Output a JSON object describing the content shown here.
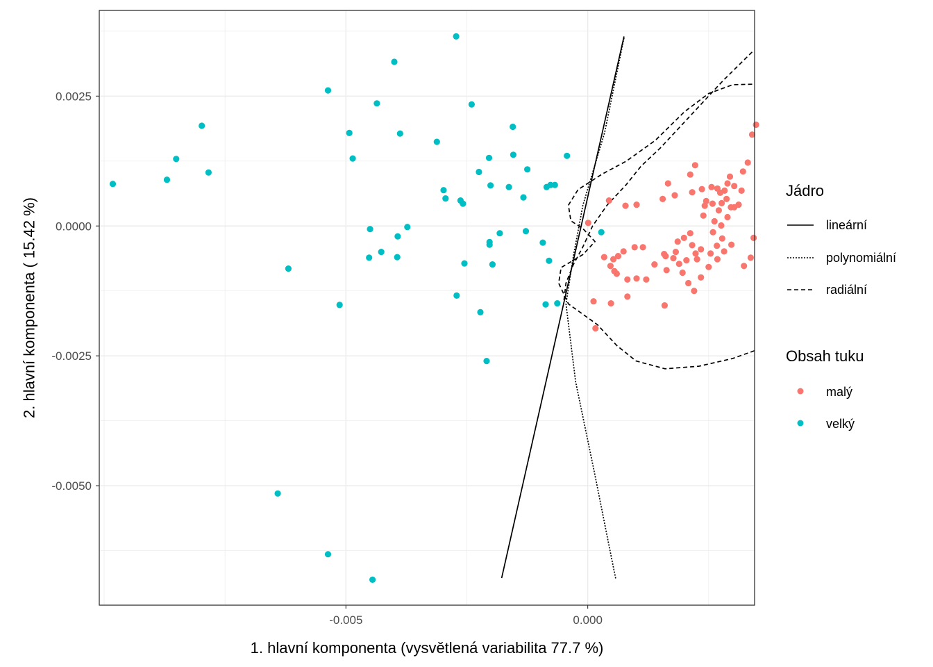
{
  "chart_data": {
    "type": "scatter",
    "xlabel": "1. hlavní komponenta (vysvětlená variabilita 77.7 %)",
    "ylabel": "2. hlavní komponenta ( 15.42 %)",
    "xlim": [
      -0.0101,
      0.00345
    ],
    "ylim": [
      -0.0073,
      0.00415
    ],
    "x_ticks": [
      -0.005,
      0.0
    ],
    "x_tick_labels": [
      "-0.005",
      "0.000"
    ],
    "y_ticks": [
      0.0025,
      0.0,
      -0.0025,
      -0.005
    ],
    "y_tick_labels": [
      "0.0025",
      "0.0000",
      "-0.0025",
      "-0.0050"
    ],
    "grid": true,
    "legend_position": "right",
    "legends": {
      "kernel": {
        "title": "Jádro",
        "entries": [
          {
            "label": "lineární",
            "dash": "solid"
          },
          {
            "label": "polynomiální",
            "dash": "dotted"
          },
          {
            "label": "radiální",
            "dash": "dashed"
          }
        ]
      },
      "fat": {
        "title": "Obsah tuku",
        "entries": [
          {
            "label": "malý",
            "color": "#F8766D"
          },
          {
            "label": "velký",
            "color": "#00BFC4"
          }
        ]
      }
    },
    "series": [
      {
        "name": "malý",
        "color": "#F8766D",
        "points": [
          [
            0.00078,
            0.00039
          ],
          [
            0.00044,
            0.00049
          ],
          [
            0.00101,
            0.00041
          ],
          [
            0.00289,
            0.00082
          ],
          [
            0.00348,
            0.00195
          ],
          [
            0.0034,
            0.00176
          ],
          [
            0.00222,
            0.00117
          ],
          [
            0.00212,
            0.00099
          ],
          [
            0.00236,
            0.00071
          ],
          [
            0.00256,
            0.00075
          ],
          [
            0.00268,
            0.00072
          ],
          [
            0.00274,
            0.00064
          ],
          [
            0.00283,
            0.00068
          ],
          [
            0.00294,
            0.00095
          ],
          [
            0.00303,
            0.00077
          ],
          [
            0.00318,
            0.00068
          ],
          [
            0.00331,
            0.00122
          ],
          [
            0.00321,
            0.00105
          ],
          [
            0.00245,
            0.00048
          ],
          [
            0.00258,
            0.00043
          ],
          [
            0.00277,
            0.00044
          ],
          [
            0.00287,
            0.00052
          ],
          [
            0.00303,
            0.00036
          ],
          [
            0.00312,
            0.00041
          ],
          [
            0.00271,
            0.0003
          ],
          [
            0.00296,
            0.00036
          ],
          [
            0.00242,
            0.00039
          ],
          [
            0.00216,
            0.00065
          ],
          [
            0.00166,
            0.00082
          ],
          [
            0.0018,
            0.00059
          ],
          [
            0.00155,
            0.00052
          ],
          [
            0.00239,
            0.0002
          ],
          [
            0.00262,
            9e-05
          ],
          [
            0.00289,
            0.00017
          ],
          [
            0.00276,
            1e-05
          ],
          [
            0.00259,
            -0.00012
          ],
          [
            0.00278,
            -0.00024
          ],
          [
            0.00297,
            -0.00036
          ],
          [
            0.00267,
            -0.00038
          ],
          [
            0.00254,
            -0.00053
          ],
          [
            0.00212,
            -0.00014
          ],
          [
            0.00199,
            -0.00023
          ],
          [
            0.00186,
            -0.0003
          ],
          [
            0.00216,
            -0.00037
          ],
          [
            0.00234,
            -0.00045
          ],
          [
            0.00226,
            -0.00064
          ],
          [
            0.00204,
            -0.00066
          ],
          [
            0.00189,
            -0.00073
          ],
          [
            0.00161,
            -0.00058
          ],
          [
            0.00138,
            -0.00074
          ],
          [
            0.00114,
            -0.00041
          ],
          [
            0.00097,
            -0.00041
          ],
          [
            0.00074,
            -0.00049
          ],
          [
            0.00063,
            -0.00058
          ],
          [
            0.00053,
            -0.00064
          ],
          [
            0.00047,
            -0.00077
          ],
          [
            0.0006,
            -0.00092
          ],
          [
            0.00082,
            -0.00103
          ],
          [
            0.00101,
            -0.00101
          ],
          [
            0.00121,
            -0.00103
          ],
          [
            0.00163,
            -0.00085
          ],
          [
            0.00177,
            -0.00062
          ],
          [
            0.00196,
            -0.0009
          ],
          [
            0.00208,
            -0.0011
          ],
          [
            0.0022,
            -0.00125
          ],
          [
            0.00234,
            -0.00099
          ],
          [
            0.0025,
            -0.00079
          ],
          [
            0.00268,
            -0.00064
          ],
          [
            0.00282,
            -0.00049
          ],
          [
            0.00337,
            -0.00061
          ],
          [
            0.00343,
            -0.00023
          ],
          [
            0.00323,
            -0.00077
          ],
          [
            0.00082,
            -0.00136
          ],
          [
            0.00048,
            -0.00149
          ],
          [
            0.00159,
            -0.00153
          ],
          [
            0.00012,
            -0.00145
          ],
          [
            0.00016,
            -0.00197
          ],
          [
            0.00055,
            -0.00087
          ],
          [
            0.00034,
            -0.0006
          ],
          [
            1e-05,
            6e-05
          ],
          [
            0.00223,
            -0.00053
          ],
          [
            0.00158,
            -0.00054
          ],
          [
            0.00182,
            -0.0005
          ]
        ]
      },
      {
        "name": "velký",
        "color": "#00BFC4",
        "points": [
          [
            -0.00982,
            0.00081
          ],
          [
            -0.0087,
            0.00089
          ],
          [
            -0.00851,
            0.00129
          ],
          [
            -0.00798,
            0.00193
          ],
          [
            -0.00784,
            0.00103
          ],
          [
            -0.00619,
            -0.00082
          ],
          [
            -0.00641,
            -0.00515
          ],
          [
            -0.00537,
            -0.00632
          ],
          [
            -0.00537,
            0.00261
          ],
          [
            -0.00513,
            -0.00152
          ],
          [
            -0.00493,
            0.00179
          ],
          [
            -0.00486,
            0.0013
          ],
          [
            -0.00436,
            0.00236
          ],
          [
            -0.0045,
            -6e-05
          ],
          [
            -0.00452,
            -0.00061
          ],
          [
            -0.00427,
            -0.0005
          ],
          [
            -0.00445,
            -0.00681
          ],
          [
            -0.004,
            0.00316
          ],
          [
            -0.00388,
            0.00178
          ],
          [
            -0.00393,
            -0.0002
          ],
          [
            -0.00373,
            -2e-05
          ],
          [
            -0.00394,
            -0.0006
          ],
          [
            -0.00312,
            0.00162
          ],
          [
            -0.00298,
            0.00069
          ],
          [
            -0.00294,
            0.00053
          ],
          [
            -0.00272,
            0.00365
          ],
          [
            -0.00271,
            -0.00134
          ],
          [
            -0.00263,
            0.00049
          ],
          [
            -0.00258,
            0.00043
          ],
          [
            -0.00255,
            -0.00072
          ],
          [
            -0.0024,
            0.00234
          ],
          [
            -0.00225,
            0.00104
          ],
          [
            -0.00222,
            -0.00166
          ],
          [
            -0.00209,
            -0.0026
          ],
          [
            -0.00204,
            0.00131
          ],
          [
            -0.00201,
            0.00078
          ],
          [
            -0.00203,
            -0.00036
          ],
          [
            -0.00203,
            -0.00031
          ],
          [
            -0.00197,
            -0.00074
          ],
          [
            -0.00182,
            -0.00014
          ],
          [
            -0.00163,
            0.00075
          ],
          [
            -0.00155,
            0.00191
          ],
          [
            -0.00154,
            0.00137
          ],
          [
            -0.00133,
            0.00055
          ],
          [
            -0.00128,
            -0.0001
          ],
          [
            -0.00125,
            0.00109
          ],
          [
            -0.00093,
            -0.00032
          ],
          [
            -0.00085,
            0.00075
          ],
          [
            -0.00077,
            0.00079
          ],
          [
            -0.00068,
            0.00079
          ],
          [
            -0.00087,
            -0.00151
          ],
          [
            -0.0008,
            -0.00067
          ],
          [
            -0.00063,
            -0.00149
          ],
          [
            -0.00043,
            0.00135
          ],
          [
            0.00028,
            -0.00012
          ]
        ]
      }
    ],
    "boundaries": [
      {
        "kernel": "lineární",
        "dash": "solid",
        "points": [
          [
            -0.00178,
            -0.00678
          ],
          [
            0.00075,
            0.00365
          ]
        ]
      },
      {
        "kernel": "polynomiální",
        "dash": "dotted",
        "points": [
          [
            0.00075,
            0.00362
          ],
          [
            0.00035,
            0.0018
          ],
          [
            -0.0001,
            0.0004
          ],
          [
            -0.0003,
            -0.0006
          ],
          [
            -0.00045,
            -0.0015
          ],
          [
            -0.00025,
            -0.003
          ],
          [
            0.00015,
            -0.0048
          ],
          [
            0.00045,
            -0.0062
          ],
          [
            0.00058,
            -0.0068
          ]
        ]
      },
      {
        "kernel": "radiální",
        "dash": "dashed",
        "points": [
          [
            0.0034,
            0.00273
          ],
          [
            0.003,
            0.00272
          ],
          [
            0.0025,
            0.00255
          ],
          [
            0.002,
            0.0022
          ],
          [
            0.0014,
            0.00165
          ],
          [
            0.0008,
            0.00125
          ],
          [
            0.0003,
            0.001
          ],
          [
            -0.0002,
            0.0007
          ],
          [
            -0.0004,
            0.0004
          ],
          [
            -0.00035,
            0.0001
          ],
          [
            -0.0001,
            -5e-05
          ],
          [
            0.00015,
            -0.0003
          ],
          [
            -0.0001,
            -0.00055
          ],
          [
            -0.00055,
            -0.0008
          ],
          [
            -0.0006,
            -0.0011
          ],
          [
            -0.0004,
            -0.0015
          ],
          [
            0.0002,
            -0.0019
          ],
          [
            0.0006,
            -0.0023
          ],
          [
            0.001,
            -0.0026
          ],
          [
            0.0016,
            -0.00275
          ],
          [
            0.0023,
            -0.0027
          ],
          [
            0.003,
            -0.00255
          ],
          [
            0.00345,
            -0.0024
          ]
        ]
      },
      {
        "kernel": "radiální",
        "dash": "dashed",
        "points": [
          [
            0.0034,
            0.00335
          ],
          [
            0.0028,
            0.0028
          ],
          [
            0.0024,
            0.0024
          ],
          [
            0.0019,
            0.0019
          ],
          [
            0.0015,
            0.0015
          ],
          [
            0.0011,
            0.00115
          ],
          [
            0.0008,
            0.0008
          ],
          [
            0.0004,
            0.0004
          ],
          [
            0.0001,
            0.0
          ],
          [
            -0.0001,
            -0.0004
          ],
          [
            -0.0003,
            -0.00075
          ],
          [
            -0.00045,
            -0.0011
          ],
          [
            -0.0005,
            -0.0015
          ]
        ]
      }
    ]
  }
}
